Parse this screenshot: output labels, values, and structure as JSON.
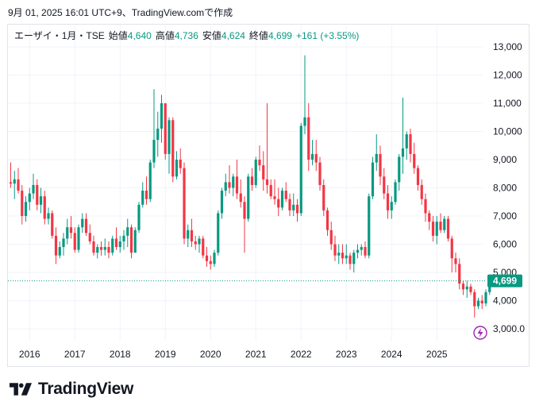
{
  "header": {
    "timestamp": "9月 01, 2025 16:01 UTC+9、TradingView.comで作成"
  },
  "legend": {
    "symbol": "エーザイ・1月・TSE",
    "open_label": "始値",
    "open": "4,640",
    "high_label": "高値",
    "high": "4,736",
    "low_label": "安値",
    "low": "4,624",
    "close_label": "終値",
    "close": "4,699",
    "change": "+161 (+3.55%)"
  },
  "footer": {
    "brand": "TradingView"
  },
  "colors": {
    "up": "#089981",
    "down": "#f23645",
    "grid": "#f0f3fa",
    "text": "#131722",
    "last_price": "#089981",
    "flash_icon": "#9c27b0"
  },
  "chart_data": {
    "type": "candlestick",
    "title": "エーザイ・1月・TSE",
    "x_axis": {
      "tick_labels": [
        "2016",
        "2017",
        "2018",
        "2019",
        "2020",
        "2021",
        "2022",
        "2023",
        "2024",
        "2025"
      ]
    },
    "y_axis": {
      "tick_labels": [
        "13,000",
        "12,000",
        "11,000",
        "10,000",
        "9,000",
        "8,000",
        "7,000",
        "6,000",
        "5,000",
        "4,000",
        "3,000.0"
      ],
      "ylim": [
        2500,
        13500
      ],
      "position": "right"
    },
    "last_price_label": "4,699",
    "grid": true,
    "start_month": "2015-08",
    "candles": [
      [
        8200,
        8900,
        8000,
        8150
      ],
      [
        8150,
        8600,
        7600,
        8300
      ],
      [
        8300,
        8700,
        7800,
        7900
      ],
      [
        7900,
        8100,
        6700,
        7000
      ],
      [
        7000,
        7700,
        6800,
        7500
      ],
      [
        7500,
        8000,
        7200,
        7800
      ],
      [
        7800,
        8500,
        7600,
        8100
      ],
      [
        8100,
        8300,
        7200,
        7400
      ],
      [
        7400,
        8000,
        7100,
        7700
      ],
      [
        7700,
        7900,
        6700,
        6900
      ],
      [
        6900,
        7300,
        6700,
        7100
      ],
      [
        7100,
        7200,
        6200,
        6300
      ],
      [
        6300,
        6600,
        5300,
        5600
      ],
      [
        5600,
        6100,
        5500,
        5900
      ],
      [
        5900,
        6400,
        5600,
        6200
      ],
      [
        6200,
        6900,
        6000,
        6600
      ],
      [
        6600,
        7000,
        6200,
        6400
      ],
      [
        6400,
        6600,
        5700,
        5800
      ],
      [
        5800,
        6700,
        5700,
        6600
      ],
      [
        6600,
        7100,
        6400,
        6900
      ],
      [
        6900,
        7100,
        6300,
        6400
      ],
      [
        6400,
        6700,
        6000,
        6100
      ],
      [
        6100,
        6300,
        5600,
        5700
      ],
      [
        5700,
        6000,
        5500,
        5900
      ],
      [
        5900,
        6100,
        5600,
        5800
      ],
      [
        5800,
        6200,
        5600,
        5900
      ],
      [
        5900,
        6100,
        5500,
        5700
      ],
      [
        5700,
        6300,
        5600,
        6200
      ],
      [
        6200,
        6600,
        5800,
        5900
      ],
      [
        5900,
        6300,
        5700,
        6100
      ],
      [
        6100,
        6500,
        5800,
        6300
      ],
      [
        6300,
        6900,
        5900,
        6600
      ],
      [
        6600,
        6700,
        5500,
        5700
      ],
      [
        5700,
        6600,
        5700,
        6500
      ],
      [
        6500,
        7500,
        6400,
        7400
      ],
      [
        7400,
        8200,
        7300,
        7900
      ],
      [
        7900,
        8400,
        7400,
        7600
      ],
      [
        7600,
        9000,
        7500,
        8900
      ],
      [
        8900,
        11500,
        8700,
        9700
      ],
      [
        9700,
        10700,
        9100,
        10100
      ],
      [
        10100,
        11300,
        9600,
        11000
      ],
      [
        11000,
        11000,
        9000,
        9200
      ],
      [
        9200,
        10500,
        8500,
        10400
      ],
      [
        10400,
        10500,
        8200,
        8400
      ],
      [
        8400,
        9300,
        8300,
        9000
      ],
      [
        9000,
        9400,
        8500,
        8700
      ],
      [
        8700,
        8900,
        6000,
        6200
      ],
      [
        6200,
        6700,
        5900,
        6500
      ],
      [
        6500,
        6900,
        5900,
        6100
      ],
      [
        6100,
        6300,
        5800,
        6000
      ],
      [
        6000,
        6300,
        5700,
        6200
      ],
      [
        6200,
        6300,
        5500,
        5600
      ],
      [
        5600,
        5900,
        5200,
        5400
      ],
      [
        5400,
        5600,
        5100,
        5300
      ],
      [
        5300,
        5800,
        5200,
        5700
      ],
      [
        5700,
        7200,
        5600,
        7100
      ],
      [
        7100,
        8000,
        6900,
        7900
      ],
      [
        7900,
        8500,
        7700,
        8200
      ],
      [
        8200,
        8800,
        7800,
        8000
      ],
      [
        8000,
        8500,
        7700,
        8400
      ],
      [
        8400,
        9000,
        7600,
        7800
      ],
      [
        7800,
        8300,
        7300,
        7500
      ],
      [
        7500,
        7700,
        5700,
        6900
      ],
      [
        6900,
        8500,
        6800,
        8400
      ],
      [
        8400,
        8700,
        7900,
        8100
      ],
      [
        8100,
        9100,
        8000,
        9000
      ],
      [
        9000,
        9500,
        8600,
        8800
      ],
      [
        8800,
        9300,
        7900,
        8300
      ],
      [
        8300,
        11000,
        7800,
        8100
      ],
      [
        8100,
        8300,
        7600,
        7700
      ],
      [
        7700,
        8300,
        7400,
        7600
      ],
      [
        7600,
        8000,
        7000,
        7300
      ],
      [
        7300,
        8000,
        7200,
        7900
      ],
      [
        7900,
        8200,
        7500,
        7600
      ],
      [
        7600,
        7800,
        7000,
        7200
      ],
      [
        7200,
        7800,
        7000,
        7400
      ],
      [
        7400,
        7600,
        6800,
        7100
      ],
      [
        7100,
        10300,
        7000,
        10200
      ],
      [
        10200,
        12700,
        9900,
        10500
      ],
      [
        10500,
        11000,
        8600,
        9000
      ],
      [
        9000,
        9700,
        8800,
        9200
      ],
      [
        9200,
        9700,
        8600,
        8900
      ],
      [
        8900,
        9100,
        7900,
        8100
      ],
      [
        8100,
        8300,
        7000,
        7200
      ],
      [
        7200,
        7300,
        6300,
        6500
      ],
      [
        6500,
        6800,
        5800,
        6000
      ],
      [
        6000,
        6300,
        5400,
        5600
      ],
      [
        5600,
        6000,
        5300,
        5700
      ],
      [
        5700,
        6000,
        5300,
        5500
      ],
      [
        5500,
        6000,
        5300,
        5600
      ],
      [
        5600,
        5700,
        5100,
        5300
      ],
      [
        5300,
        5800,
        5000,
        5700
      ],
      [
        5700,
        6000,
        5500,
        5800
      ],
      [
        5800,
        6000,
        5600,
        5900
      ],
      [
        5900,
        6100,
        5500,
        5600
      ],
      [
        5600,
        7800,
        5500,
        7700
      ],
      [
        7700,
        9100,
        7600,
        8900
      ],
      [
        8900,
        9900,
        8600,
        9200
      ],
      [
        9200,
        9500,
        8100,
        8400
      ],
      [
        8400,
        8700,
        7600,
        7800
      ],
      [
        7800,
        8100,
        6900,
        7200
      ],
      [
        7200,
        7700,
        6900,
        7500
      ],
      [
        7500,
        8300,
        7400,
        8200
      ],
      [
        8200,
        9200,
        7900,
        9100
      ],
      [
        9100,
        11200,
        8500,
        9400
      ],
      [
        9400,
        10000,
        9000,
        9900
      ],
      [
        9900,
        10100,
        8900,
        9200
      ],
      [
        9200,
        9600,
        8500,
        8700
      ],
      [
        8700,
        8800,
        7900,
        8100
      ],
      [
        8100,
        8300,
        7400,
        7600
      ],
      [
        7600,
        7800,
        6800,
        7100
      ],
      [
        7100,
        7200,
        6500,
        6800
      ],
      [
        6800,
        7000,
        6100,
        6300
      ],
      [
        6300,
        7000,
        6000,
        6800
      ],
      [
        6800,
        7100,
        6400,
        6500
      ],
      [
        6500,
        7000,
        6400,
        6900
      ],
      [
        6900,
        7000,
        6100,
        6200
      ],
      [
        6200,
        6300,
        5000,
        5500
      ],
      [
        5500,
        5700,
        5000,
        5300
      ],
      [
        5300,
        5500,
        4400,
        4600
      ],
      [
        4600,
        4700,
        4200,
        4400
      ],
      [
        4400,
        4700,
        4100,
        4500
      ],
      [
        4500,
        4600,
        4200,
        4300
      ],
      [
        4300,
        4400,
        3400,
        3800
      ],
      [
        3800,
        4100,
        3700,
        4000
      ],
      [
        4000,
        4200,
        3700,
        3900
      ],
      [
        3900,
        4400,
        3800,
        4300
      ],
      [
        4300,
        4800,
        4200,
        4538
      ],
      [
        4640,
        4736,
        4624,
        4699
      ]
    ]
  }
}
